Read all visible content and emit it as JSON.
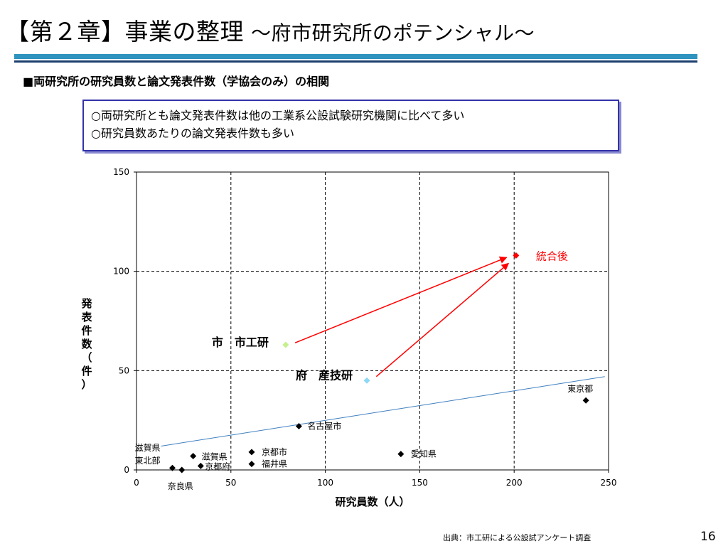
{
  "slide": {
    "title": "【第２章】事業の整理",
    "subtitle": "～府市研究所のポテンシャル～",
    "section_heading": "■両研究所の研究員数と論文発表件数（学協会のみ）の相関",
    "bullets": [
      "○両研究所とも論文発表件数は他の工業系公設試験研究機関に比べて多い",
      "○研究員数あたりの論文発表件数も多い"
    ],
    "source": "出典：市工研による公設試アンケート調査",
    "page_number": "16"
  },
  "chart_data": {
    "type": "scatter",
    "xlabel": "研究員数（人）",
    "ylabel": "発表件数（件）",
    "xlim": [
      0,
      250
    ],
    "ylim": [
      0,
      150
    ],
    "xticks": [
      0,
      50,
      100,
      150,
      200,
      250
    ],
    "yticks": [
      0,
      50,
      100,
      150
    ],
    "grid": "dashed",
    "points": [
      {
        "x": 238,
        "y": 35,
        "label": "東京都",
        "color": "#000000"
      },
      {
        "x": 86,
        "y": 22,
        "label": "名古屋市",
        "color": "#000000"
      },
      {
        "x": 140,
        "y": 8,
        "label": "愛知県",
        "color": "#000000"
      },
      {
        "x": 61,
        "y": 9,
        "label": "京都市",
        "color": "#000000"
      },
      {
        "x": 61,
        "y": 3,
        "label": "福井県",
        "color": "#000000"
      },
      {
        "x": 30,
        "y": 7,
        "label": "滋賀県",
        "color": "#000000"
      },
      {
        "x": 34,
        "y": 2,
        "label": "京都府",
        "color": "#000000"
      },
      {
        "x": 19,
        "y": 1,
        "label": "滋賀県 東北部",
        "color": "#000000"
      },
      {
        "x": 24,
        "y": 0,
        "label": "奈良県",
        "color": "#000000"
      },
      {
        "x": 79,
        "y": 63,
        "label": "市　市工研",
        "color": "#c6ef8e"
      },
      {
        "x": 122,
        "y": 45,
        "label": "府　産技研",
        "color": "#8fd8f5"
      },
      {
        "x": 201,
        "y": 108,
        "label": "統合後",
        "color": "#ff0000"
      }
    ],
    "trendline": {
      "x": [
        13,
        248
      ],
      "y": [
        12,
        47
      ],
      "color": "#3f7fbf"
    },
    "arrows": [
      {
        "from": [
          84,
          64
        ],
        "to": [
          196,
          107
        ],
        "color": "#ff0000"
      },
      {
        "from": [
          127,
          47
        ],
        "to": [
          197,
          104
        ],
        "color": "#ff0000"
      }
    ]
  }
}
